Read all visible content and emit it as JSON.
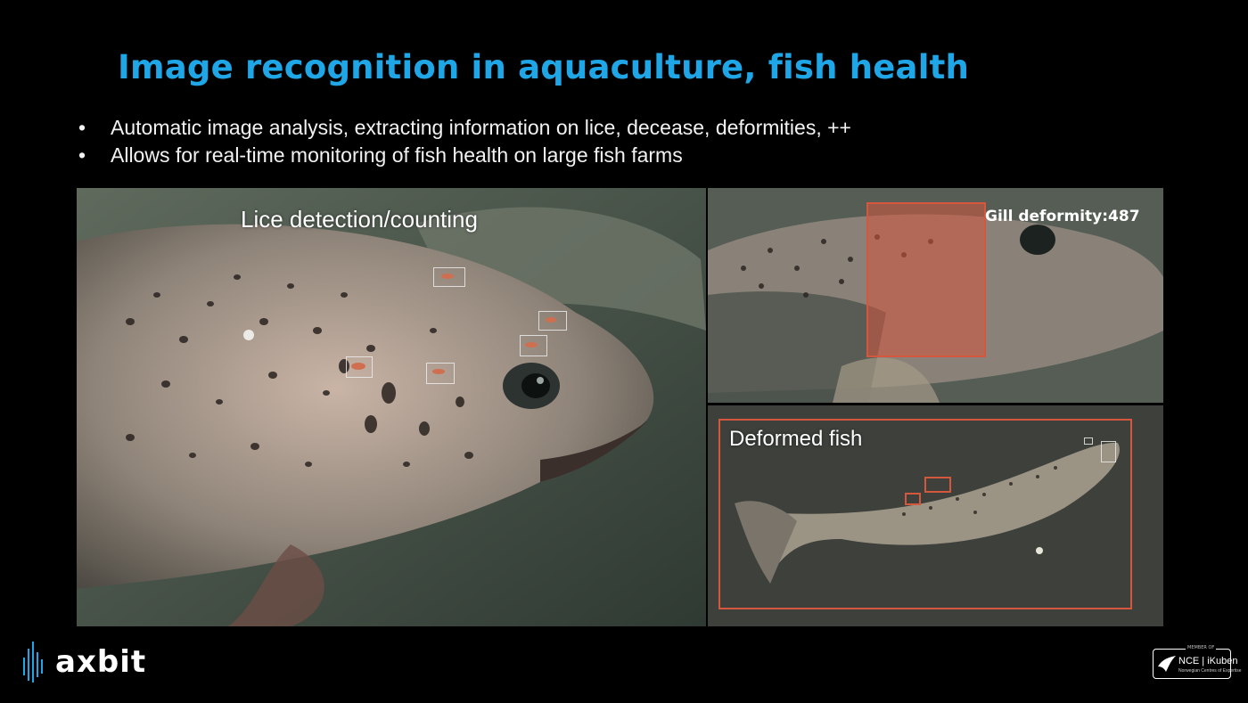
{
  "slide": {
    "title": "Image recognition in aquaculture, fish health",
    "bullets": [
      "Automatic image analysis, extracting information on lice, decease, deformities, ++",
      "Allows for real-time monitoring of fish health on large fish farms"
    ]
  },
  "panels": {
    "lice": {
      "label": "Lice detection/counting"
    },
    "gill": {
      "label": "Gill deformity:487"
    },
    "deformed": {
      "label": "Deformed fish"
    }
  },
  "footer": {
    "logo_text": "axbit",
    "badge_top": "MEMBER OF",
    "badge_main": "NCE | iKuben",
    "badge_sub": "Norwegian Centres of Expertise"
  },
  "colors": {
    "title": "#1fa6e6",
    "detection_box": "#d5573e",
    "background": "#000000"
  },
  "icons": [
    "axbit-bars-icon",
    "ikuben-bird-icon"
  ]
}
